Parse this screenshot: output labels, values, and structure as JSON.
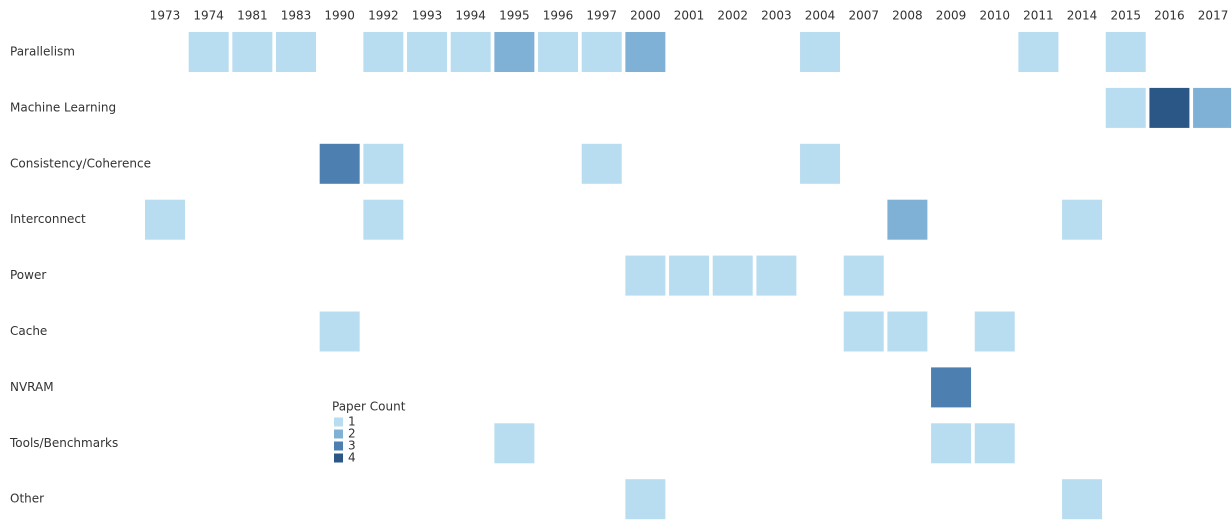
{
  "chart_data": {
    "type": "heatmap",
    "x": [
      "1973",
      "1974",
      "1981",
      "1983",
      "1990",
      "1992",
      "1993",
      "1994",
      "1995",
      "1996",
      "1997",
      "2000",
      "2001",
      "2002",
      "2003",
      "2004",
      "2007",
      "2008",
      "2009",
      "2010",
      "2011",
      "2014",
      "2015",
      "2016",
      "2017"
    ],
    "categories": [
      "Parallelism",
      "Machine Learning",
      "Consistency/Coherence",
      "Interconnect",
      "Power",
      "Cache",
      "NVRAM",
      "Tools/Benchmarks",
      "Other"
    ],
    "values": [
      [
        null,
        1,
        1,
        1,
        null,
        1,
        1,
        1,
        2,
        1,
        1,
        2,
        null,
        null,
        null,
        1,
        null,
        null,
        null,
        null,
        1,
        null,
        1,
        null,
        null
      ],
      [
        null,
        null,
        null,
        null,
        null,
        null,
        null,
        null,
        null,
        null,
        null,
        null,
        null,
        null,
        null,
        null,
        null,
        null,
        null,
        null,
        null,
        null,
        1,
        4,
        2
      ],
      [
        null,
        null,
        null,
        null,
        3,
        1,
        null,
        null,
        null,
        null,
        1,
        null,
        null,
        null,
        null,
        1,
        null,
        null,
        null,
        null,
        null,
        null,
        null,
        null,
        null
      ],
      [
        1,
        null,
        null,
        null,
        null,
        1,
        null,
        null,
        null,
        null,
        null,
        null,
        null,
        null,
        null,
        null,
        null,
        2,
        null,
        null,
        null,
        1,
        null,
        null,
        null
      ],
      [
        null,
        null,
        null,
        null,
        null,
        null,
        null,
        null,
        null,
        null,
        null,
        1,
        1,
        1,
        1,
        null,
        1,
        null,
        null,
        null,
        null,
        null,
        null,
        null,
        null
      ],
      [
        null,
        null,
        null,
        null,
        1,
        null,
        null,
        null,
        null,
        null,
        null,
        null,
        null,
        null,
        null,
        null,
        1,
        1,
        null,
        1,
        null,
        null,
        null,
        null,
        null
      ],
      [
        null,
        null,
        null,
        null,
        null,
        null,
        null,
        null,
        null,
        null,
        null,
        null,
        null,
        null,
        null,
        null,
        null,
        null,
        3,
        null,
        null,
        null,
        null,
        null,
        null
      ],
      [
        null,
        null,
        null,
        null,
        null,
        null,
        null,
        null,
        1,
        null,
        null,
        null,
        null,
        null,
        null,
        null,
        null,
        null,
        1,
        1,
        null,
        null,
        null,
        null,
        null
      ],
      [
        null,
        null,
        null,
        null,
        null,
        null,
        null,
        null,
        null,
        null,
        null,
        1,
        null,
        null,
        null,
        null,
        null,
        null,
        null,
        null,
        null,
        1,
        null,
        null,
        null
      ]
    ],
    "legend_title": "Paper Count",
    "legend": [
      {
        "value": 1,
        "color": "#b9ddf0"
      },
      {
        "value": 2,
        "color": "#7fb0d6"
      },
      {
        "value": 3,
        "color": "#4d7fb0"
      },
      {
        "value": 4,
        "color": "#2a5785"
      }
    ]
  }
}
